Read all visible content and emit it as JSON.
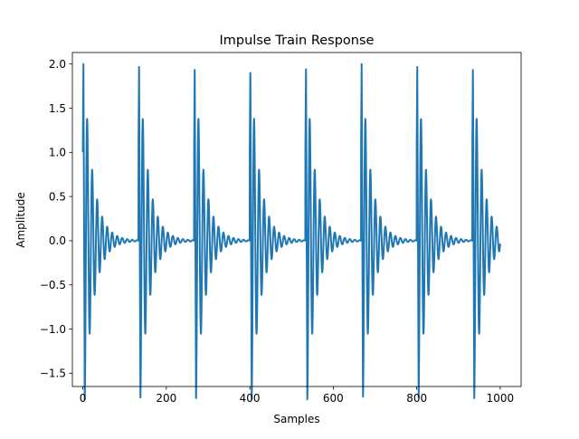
{
  "chart_data": {
    "type": "line",
    "title": "Impulse Train Response",
    "xlabel": "Samples",
    "ylabel": "Amplitude",
    "xlim": [
      -25,
      1050
    ],
    "ylim": [
      -1.65,
      2.13
    ],
    "xticks": [
      0,
      200,
      400,
      600,
      800,
      1000
    ],
    "yticks": [
      -1.5,
      -1.0,
      -0.5,
      0.0,
      0.5,
      1.0,
      1.5,
      2.0
    ],
    "xtick_labels": [
      "0",
      "200",
      "400",
      "600",
      "800",
      "1000"
    ],
    "ytick_labels": [
      "−1.5",
      "−1.0",
      "−0.5",
      "0.0",
      "0.5",
      "1.0",
      "1.5",
      "2.0"
    ],
    "grid": false,
    "series": [
      {
        "color": "#1f77b4",
        "x_range": [
          0,
          1000
        ],
        "impulse_period": 133.3,
        "impulse_starts": [
          0,
          133.3,
          266.7,
          400,
          533.3,
          666.7,
          800,
          933.3
        ],
        "peak_value": 2.0,
        "first_trough": -1.55,
        "ringing_period": 12,
        "ringing_amplitude": 1.8,
        "decay_rate_per_sample": 0.045,
        "start_value": 1.0
      }
    ]
  }
}
